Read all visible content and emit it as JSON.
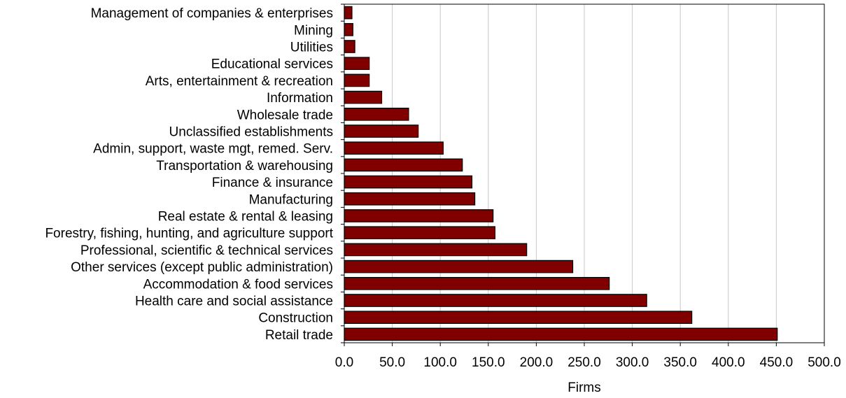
{
  "chart_data": {
    "type": "bar",
    "orientation": "horizontal",
    "title": "",
    "xlabel": "Firms",
    "ylabel": "",
    "xlim": [
      0,
      500
    ],
    "x_ticks": [
      "0.0",
      "50.0",
      "100.0",
      "150.0",
      "200.0",
      "250.0",
      "300.0",
      "350.0",
      "400.0",
      "450.0",
      "500.0"
    ],
    "grid": "vertical",
    "bar_color": "#800000",
    "categories": [
      "Management of companies & enterprises",
      "Mining",
      "Utilities",
      "Educational services",
      "Arts, entertainment & recreation",
      "Information",
      "Wholesale trade",
      "Unclassified establishments",
      "Admin, support, waste mgt, remed. Serv.",
      "Transportation & warehousing",
      "Finance & insurance",
      "Manufacturing",
      "Real estate & rental & leasing",
      "Forestry, fishing, hunting, and agriculture support",
      "Professional, scientific & technical services",
      "Other services (except public administration)",
      "Accommodation & food services",
      "Health care and social assistance",
      "Construction",
      "Retail trade"
    ],
    "values": [
      8,
      9,
      11,
      26,
      26,
      39,
      67,
      77,
      103,
      123,
      133,
      136,
      155,
      157,
      190,
      238,
      276,
      315,
      362,
      451
    ]
  }
}
